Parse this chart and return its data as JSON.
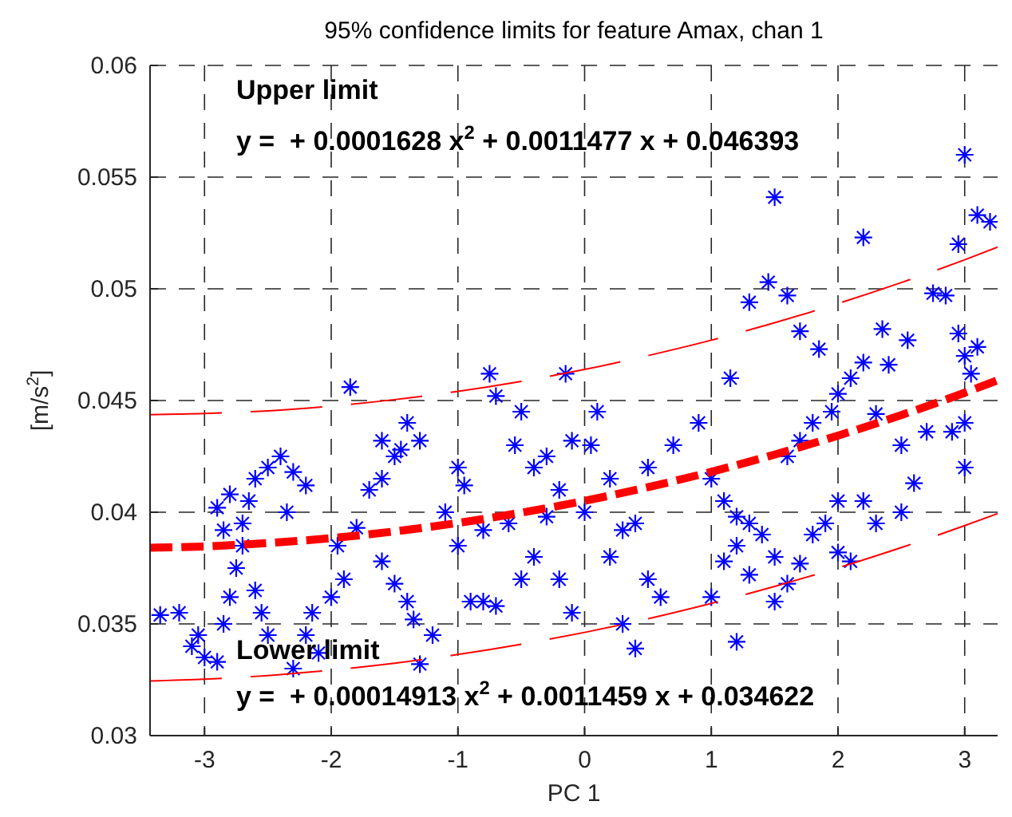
{
  "chart_data": {
    "type": "scatter",
    "title": "95% confidence limits for feature Amax, chan 1",
    "xlabel": "PC 1",
    "ylabel": "[m/s$^{2}$]",
    "xlim": [
      -3.43,
      3.26
    ],
    "ylim": [
      0.03,
      0.06
    ],
    "xticks": [
      -3,
      -2,
      -1,
      0,
      1,
      2,
      3
    ],
    "yticks": [
      0.03,
      0.035,
      0.04,
      0.045,
      0.05,
      0.055,
      0.06
    ],
    "grid": true,
    "line_style": "dashed",
    "annotations": [
      "Upper limit",
      "y =  + 0.0001628 x$^{2}$ + 0.0011477 x + 0.046393",
      "Lower limit",
      "y =  + 0.00014913 x$^{2}$ + 0.0011459 x + 0.034622"
    ],
    "series": [
      {
        "marker": "cross",
        "color": "#0000ff",
        "x": [
          -3.35,
          -3.2,
          -3.05,
          -3.0,
          -2.9,
          -3.1,
          -2.85,
          -2.8,
          -2.75,
          -2.7,
          -2.7,
          -2.65,
          -2.6,
          -2.8,
          -2.9,
          -2.85,
          -2.55,
          -2.6,
          -2.5,
          -2.5,
          -2.4,
          -2.3,
          -2.35,
          -2.2,
          -2.2,
          -2.1,
          -2.3,
          -2.15,
          -2.0,
          -1.9,
          -1.95,
          -1.8,
          -1.85,
          -1.7,
          -1.6,
          -1.5,
          -1.6,
          -1.45,
          -1.4,
          -1.3,
          -1.6,
          -1.5,
          -1.4,
          -1.35,
          -1.2,
          -1.3,
          -1.1,
          -1.0,
          -0.95,
          -1.0,
          -0.9,
          -0.8,
          -0.7,
          -0.8,
          -0.75,
          -0.7,
          -0.55,
          -0.5,
          -0.4,
          -0.3,
          -0.3,
          -0.2,
          -0.1,
          -0.2,
          -0.4,
          -0.5,
          -0.6,
          -0.15,
          0.0,
          0.05,
          0.1,
          0.2,
          0.3,
          0.2,
          0.4,
          0.5,
          0.6,
          0.3,
          -0.1,
          0.5,
          0.7,
          0.9,
          1.0,
          1.1,
          1.2,
          1.3,
          1.2,
          1.1,
          1.3,
          1.4,
          1.5,
          1.6,
          1.7,
          1.8,
          1.9,
          2.0,
          1.5,
          1.0,
          1.2,
          0.4,
          1.6,
          1.7,
          1.8,
          1.85,
          1.7,
          1.45,
          1.6,
          1.3,
          1.15,
          2.0,
          2.1,
          2.2,
          2.4,
          2.35,
          2.55,
          2.3,
          2.5,
          2.6,
          2.7,
          2.5,
          2.3,
          2.2,
          2.1,
          2.0,
          1.95,
          1.5,
          2.2,
          2.75,
          2.85,
          2.95,
          3.0,
          3.1,
          3.05,
          3.0,
          2.95,
          3.1,
          3.0,
          3.2,
          3.0,
          2.9
        ],
        "values": [
          0.0354,
          0.0355,
          0.0345,
          0.0335,
          0.0333,
          0.034,
          0.035,
          0.0362,
          0.0375,
          0.0385,
          0.0395,
          0.0405,
          0.0415,
          0.0408,
          0.0402,
          0.0392,
          0.0355,
          0.0365,
          0.0345,
          0.042,
          0.0425,
          0.0418,
          0.04,
          0.0412,
          0.0345,
          0.0337,
          0.033,
          0.0355,
          0.0362,
          0.037,
          0.0385,
          0.0393,
          0.0456,
          0.041,
          0.0415,
          0.0425,
          0.0432,
          0.0428,
          0.044,
          0.0432,
          0.0378,
          0.0368,
          0.036,
          0.0352,
          0.0345,
          0.0332,
          0.04,
          0.042,
          0.0412,
          0.0385,
          0.036,
          0.036,
          0.0358,
          0.0392,
          0.0462,
          0.0452,
          0.043,
          0.0445,
          0.042,
          0.0425,
          0.0398,
          0.041,
          0.0432,
          0.037,
          0.038,
          0.037,
          0.0395,
          0.0462,
          0.04,
          0.043,
          0.0445,
          0.0415,
          0.0392,
          0.038,
          0.0395,
          0.037,
          0.0362,
          0.035,
          0.0355,
          0.042,
          0.043,
          0.044,
          0.0415,
          0.0405,
          0.0398,
          0.0395,
          0.0385,
          0.0378,
          0.0372,
          0.039,
          0.038,
          0.0368,
          0.0377,
          0.039,
          0.0395,
          0.0405,
          0.036,
          0.0362,
          0.0342,
          0.0339,
          0.0425,
          0.0432,
          0.044,
          0.0473,
          0.0481,
          0.0503,
          0.0497,
          0.0494,
          0.046,
          0.0453,
          0.046,
          0.0467,
          0.0466,
          0.0482,
          0.0477,
          0.0444,
          0.043,
          0.0413,
          0.0436,
          0.04,
          0.0395,
          0.0405,
          0.0378,
          0.0382,
          0.0445,
          0.0541,
          0.0523,
          0.0498,
          0.0497,
          0.048,
          0.047,
          0.0474,
          0.0462,
          0.044,
          0.052,
          0.0533,
          0.056,
          0.053,
          0.042,
          0.0436
        ]
      },
      {
        "type": "line",
        "marker": "none",
        "color": "#ff0000",
        "x": [
          -3.43,
          -3,
          -2.5,
          -2,
          -1.5,
          -1,
          -0.5,
          0,
          0.5,
          1,
          1.5,
          2,
          2.5,
          3,
          3.26
        ],
        "values": [
          0.03841,
          0.03847,
          0.03862,
          0.03884,
          0.03914,
          0.03952,
          0.03998,
          0.04051,
          0.04112,
          0.04181,
          0.04258,
          0.04343,
          0.04435,
          0.04535,
          0.04591
        ]
      },
      {
        "type": "line",
        "marker": "none",
        "color": "#ff0000",
        "x": [
          -3.43,
          -3,
          -2.5,
          -2,
          -1.5,
          -1,
          -0.5,
          0,
          0.5,
          1,
          1.5,
          2,
          2.5,
          3,
          3.26
        ],
        "values": [
          0.04437,
          0.04442,
          0.04454,
          0.04475,
          0.04504,
          0.04541,
          0.04586,
          0.04639,
          0.04701,
          0.0477,
          0.04848,
          0.04934,
          0.05028,
          0.0513,
          0.05187
        ]
      },
      {
        "type": "line",
        "marker": "none",
        "color": "#ff0000",
        "x": [
          -3.43,
          -3,
          -2.5,
          -2,
          -1.5,
          -1,
          -0.5,
          0,
          0.5,
          1,
          1.5,
          2,
          2.5,
          3,
          3.26
        ],
        "values": [
          0.03245,
          0.03253,
          0.03269,
          0.03293,
          0.03324,
          0.03363,
          0.03409,
          0.03462,
          0.03523,
          0.03592,
          0.03668,
          0.03751,
          0.03842,
          0.0394,
          0.03994
        ]
      }
    ]
  }
}
